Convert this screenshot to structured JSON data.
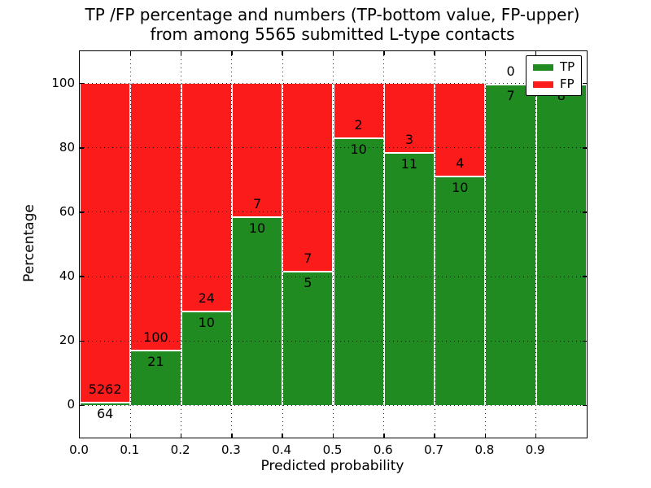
{
  "title": {
    "line1": "TP /FP percentage and numbers (TP-bottom value, FP-upper)",
    "line2": "from among 5565 submitted L-type contacts"
  },
  "chart_data": {
    "type": "bar",
    "stacked": true,
    "normalized_to_percent": true,
    "title": "TP /FP percentage and numbers (TP-bottom value, FP-upper)\nfrom among 5565 submitted L-type contacts",
    "xlabel": "Predicted probability",
    "ylabel": "Percentage",
    "categories": [
      "0.0-0.1",
      "0.1-0.2",
      "0.2-0.3",
      "0.3-0.4",
      "0.4-0.5",
      "0.5-0.6",
      "0.6-0.7",
      "0.7-0.8",
      "0.8-0.9",
      "0.9-1.0"
    ],
    "series": [
      {
        "name": "TP",
        "color": "#208b20",
        "values": [
          64,
          21,
          10,
          10,
          5,
          10,
          11,
          10,
          7,
          8
        ]
      },
      {
        "name": "FP",
        "color": "#fc1b1b",
        "values": [
          5262,
          100,
          24,
          7,
          7,
          2,
          3,
          4,
          0,
          0
        ]
      }
    ],
    "tp_percentages": [
      1.2,
      17.4,
      29.4,
      58.8,
      41.7,
      83.3,
      78.6,
      71.4,
      100.0,
      100.0
    ],
    "total_contacts": 5565,
    "xlim": [
      0.0,
      1.0
    ],
    "ylim": [
      -10,
      110
    ],
    "xticks": [
      "0.0",
      "0.1",
      "0.2",
      "0.3",
      "0.4",
      "0.5",
      "0.6",
      "0.7",
      "0.8",
      "0.9"
    ],
    "yticks": [
      "0",
      "20",
      "40",
      "60",
      "80",
      "100"
    ],
    "grid": "dotted",
    "bar_edge_color": "#ffffff",
    "legend": {
      "position": "upper right",
      "entries": [
        {
          "label": "TP",
          "color": "#208b20"
        },
        {
          "label": "FP",
          "color": "#fc1b1b"
        }
      ]
    }
  }
}
